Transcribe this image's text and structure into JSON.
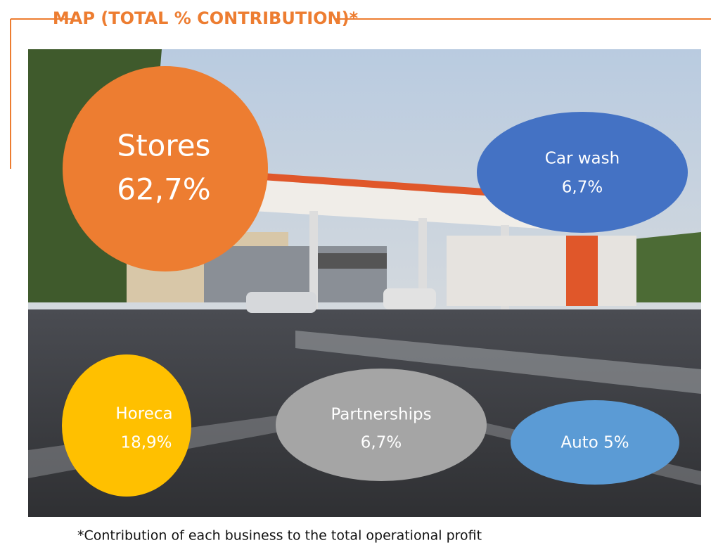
{
  "header": {
    "title": "MAP (TOTAL % CONTRIBUTION)*"
  },
  "bubbles": [
    {
      "label": "Stores",
      "value": "62,7%"
    },
    {
      "label": "Car wash",
      "value": "6,7%"
    },
    {
      "label": "Horeca",
      "value": "18,9%"
    },
    {
      "label": "Partnerships",
      "value": "6,7%"
    },
    {
      "label": "Auto 5%"
    }
  ],
  "footnote": "*Contribution of each business to the total operational profit"
}
